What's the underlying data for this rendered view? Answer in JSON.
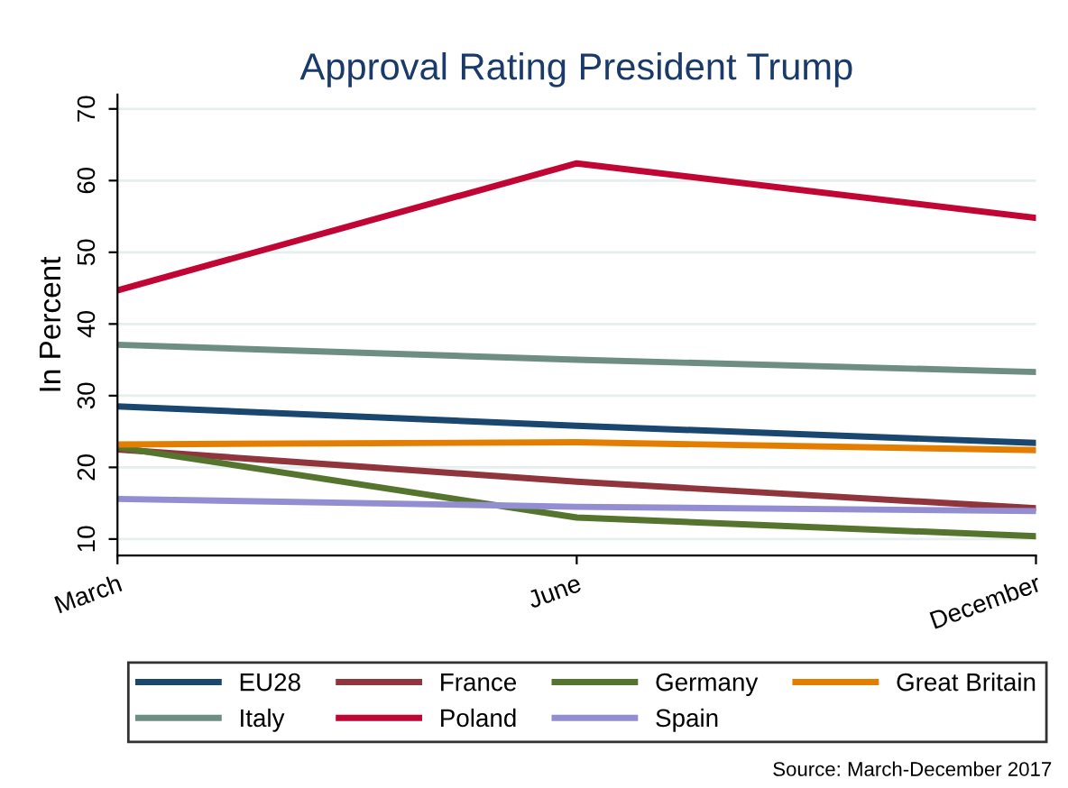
{
  "chart_data": {
    "type": "line",
    "title": "Approval Rating President Trump",
    "ylabel": "In Percent",
    "categories": [
      "March",
      "June",
      "December"
    ],
    "series": [
      {
        "name": "EU28",
        "color": "#1a476f",
        "values": [
          28.5,
          25.8,
          23.4
        ]
      },
      {
        "name": "France",
        "color": "#90353b",
        "values": [
          22.5,
          18.0,
          14.3
        ]
      },
      {
        "name": "Germany",
        "color": "#55752f",
        "values": [
          22.8,
          13.0,
          10.4
        ]
      },
      {
        "name": "Great Britain",
        "color": "#e37e00",
        "values": [
          23.2,
          23.5,
          22.4
        ]
      },
      {
        "name": "Italy",
        "color": "#6e8e84",
        "values": [
          37.1,
          35.0,
          33.3
        ]
      },
      {
        "name": "Poland",
        "color": "#c10534",
        "values": [
          44.7,
          62.4,
          54.8
        ]
      },
      {
        "name": "Spain",
        "color": "#938dd2",
        "values": [
          15.6,
          14.5,
          13.9
        ]
      }
    ],
    "ylim": [
      7.7,
      72
    ],
    "yticks": [
      10,
      20,
      30,
      40,
      50,
      60,
      70
    ],
    "grid": "y",
    "legend": "bottom",
    "marker": "none",
    "line_style": "solid",
    "annotations": [
      "Source: March-December 2017"
    ]
  }
}
